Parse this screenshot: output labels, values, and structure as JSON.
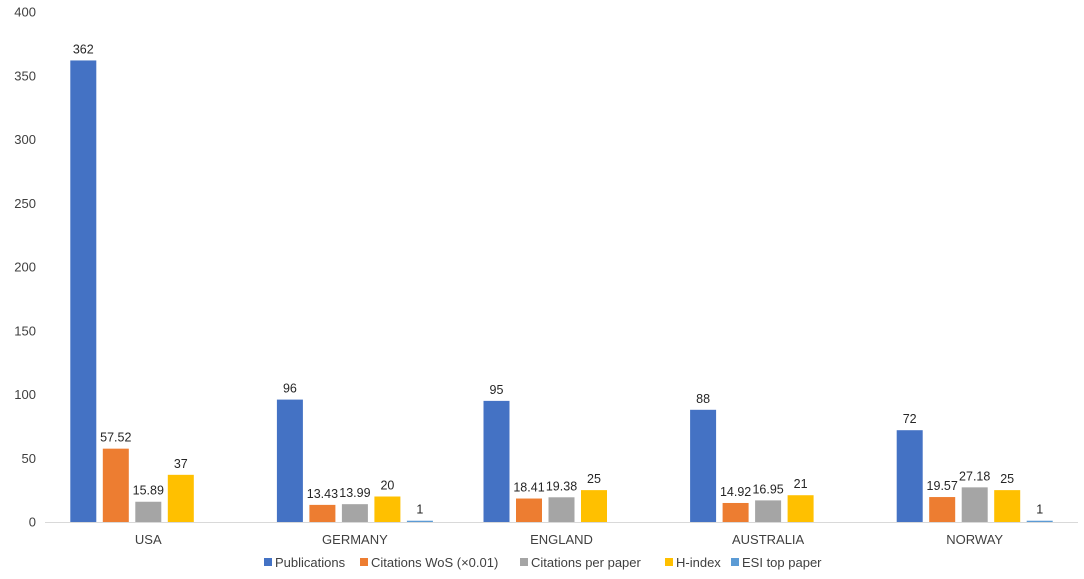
{
  "chart_data": {
    "type": "bar",
    "title": "",
    "xlabel": "",
    "ylabel": "",
    "ylim": [
      0,
      400
    ],
    "yticks": [
      0,
      50,
      100,
      150,
      200,
      250,
      300,
      350,
      400
    ],
    "grid": false,
    "legend_position": "bottom",
    "categories": [
      "USA",
      "GERMANY",
      "ENGLAND",
      "AUSTRALIA",
      "NORWAY"
    ],
    "series": [
      {
        "name": "Publications",
        "color": "#4472C4",
        "values": [
          362,
          96,
          95,
          88,
          72
        ],
        "labels": [
          "362",
          "96",
          "95",
          "88",
          "72"
        ]
      },
      {
        "name": "Citations WoS (×0.01)",
        "color": "#ED7D31",
        "values": [
          57.52,
          13.43,
          18.41,
          14.92,
          19.57
        ],
        "labels": [
          "57.52",
          "13.43",
          "18.41",
          "14.92",
          "19.57"
        ]
      },
      {
        "name": "Citations per paper",
        "color": "#A5A5A5",
        "values": [
          15.89,
          13.99,
          19.38,
          16.95,
          27.18
        ],
        "labels": [
          "15.89",
          "13.99",
          "19.38",
          "16.95",
          "27.18"
        ]
      },
      {
        "name": "H-index",
        "color": "#FFC000",
        "values": [
          37,
          20,
          25,
          21,
          25
        ],
        "labels": [
          "37",
          "20",
          "25",
          "21",
          "25"
        ]
      },
      {
        "name": "ESI top paper",
        "color": "#5B9BD5",
        "values": [
          0,
          1,
          0,
          0,
          1
        ],
        "labels": [
          "",
          "1",
          "",
          "",
          "1"
        ]
      }
    ]
  }
}
